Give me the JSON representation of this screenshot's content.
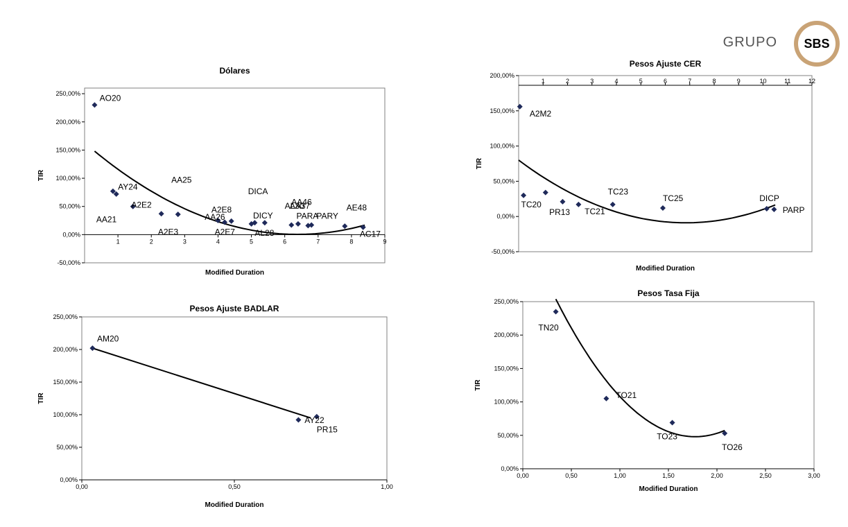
{
  "logo": {
    "word": "GRUPO",
    "badge": "SBS",
    "accent": "#c9a376"
  },
  "colors": {
    "point": "#1f2a5a",
    "trend": "#000000",
    "axis": "#808080"
  },
  "chart_data": [
    {
      "id": "dolares",
      "type": "scatter",
      "title": "Dólares",
      "xlabel": "Modified Duration",
      "ylabel": "TIR",
      "xlim": [
        0,
        9
      ],
      "ylim": [
        -0.5,
        2.6
      ],
      "xticks": [
        1,
        2,
        3,
        4,
        5,
        6,
        7,
        8,
        9
      ],
      "xtick_labels": [
        "1",
        "2",
        "3",
        "4",
        "5",
        "6",
        "7",
        "8",
        "9"
      ],
      "yticks": [
        -0.5,
        0,
        0.5,
        1.0,
        1.5,
        2.0,
        2.5
      ],
      "ytick_labels": [
        "-50,00%",
        "0,00%",
        "50,00%",
        "100,00%",
        "150,00%",
        "200,00%",
        "250,00%"
      ],
      "x_axis_at_zero": true,
      "points": [
        {
          "x": 0.3,
          "y": 2.3
        },
        {
          "x": 0.85,
          "y": 0.77
        },
        {
          "x": 0.95,
          "y": 0.72
        },
        {
          "x": 1.45,
          "y": 0.5
        },
        {
          "x": 2.3,
          "y": 0.37
        },
        {
          "x": 2.8,
          "y": 0.36
        },
        {
          "x": 4.0,
          "y": 0.25
        },
        {
          "x": 4.2,
          "y": 0.22
        },
        {
          "x": 4.4,
          "y": 0.24
        },
        {
          "x": 5.0,
          "y": 0.19
        },
        {
          "x": 5.1,
          "y": 0.21
        },
        {
          "x": 5.4,
          "y": 0.21
        },
        {
          "x": 6.2,
          "y": 0.17
        },
        {
          "x": 6.4,
          "y": 0.19
        },
        {
          "x": 6.7,
          "y": 0.16
        },
        {
          "x": 6.8,
          "y": 0.17
        },
        {
          "x": 7.8,
          "y": 0.15
        },
        {
          "x": 8.35,
          "y": 0.13
        }
      ],
      "labels": [
        {
          "text": "AO20",
          "x": 0.45,
          "y": 2.37
        },
        {
          "text": "AY24",
          "x": 1.0,
          "y": 0.8
        },
        {
          "text": "AA25",
          "x": 2.6,
          "y": 0.92
        },
        {
          "text": "A2E2",
          "x": 1.4,
          "y": 0.48
        },
        {
          "text": "AA21",
          "x": 0.35,
          "y": 0.22
        },
        {
          "text": "A2E3",
          "x": 2.2,
          "y": 0.0
        },
        {
          "text": "A2E8",
          "x": 3.8,
          "y": 0.39
        },
        {
          "text": "AA26",
          "x": 3.6,
          "y": 0.26
        },
        {
          "text": "A2E7",
          "x": 3.9,
          "y": 0.0
        },
        {
          "text": "DICA",
          "x": 4.9,
          "y": 0.72
        },
        {
          "text": "DICY",
          "x": 5.05,
          "y": 0.29
        },
        {
          "text": "AL28",
          "x": 5.1,
          "y": -0.02
        },
        {
          "text": "AA46",
          "x": 6.2,
          "y": 0.53
        },
        {
          "text": "AL30",
          "x": 6.0,
          "y": 0.46
        },
        {
          "text": "AA37",
          "x": 6.15,
          "y": 0.46
        },
        {
          "text": "PARA",
          "x": 6.35,
          "y": 0.28
        },
        {
          "text": "PARY",
          "x": 6.95,
          "y": 0.28
        },
        {
          "text": "AE48",
          "x": 7.85,
          "y": 0.43
        },
        {
          "text": "AC17",
          "x": 8.25,
          "y": -0.04
        }
      ],
      "trendline": {
        "kind": "quadratic",
        "coef": [
          0.04,
          -0.51,
          1.63
        ],
        "x_range": [
          0.3,
          8.4
        ]
      }
    },
    {
      "id": "badlar",
      "type": "scatter",
      "title": "Pesos Ajuste BADLAR",
      "xlabel": "Modified Duration",
      "ylabel": "TIR",
      "xlim": [
        0,
        1
      ],
      "ylim": [
        0,
        2.5
      ],
      "xticks": [
        0,
        0.5,
        1.0
      ],
      "xtick_labels": [
        "0,00",
        "0,50",
        "1,00"
      ],
      "yticks": [
        0,
        0.5,
        1.0,
        1.5,
        2.0,
        2.5
      ],
      "ytick_labels": [
        "0,00%",
        "50,00%",
        "100,00%",
        "150,00%",
        "200,00%",
        "250,00%"
      ],
      "points": [
        {
          "x": 0.035,
          "y": 2.02
        },
        {
          "x": 0.71,
          "y": 0.92
        },
        {
          "x": 0.77,
          "y": 0.97
        }
      ],
      "labels": [
        {
          "text": "AM20",
          "x": 0.05,
          "y": 2.12
        },
        {
          "text": "AY22",
          "x": 0.73,
          "y": 0.87
        },
        {
          "text": "PR15",
          "x": 0.77,
          "y": 0.73
        }
      ],
      "trendline": {
        "kind": "linear",
        "points": [
          [
            0.035,
            2.02
          ],
          [
            0.75,
            0.95
          ]
        ]
      }
    },
    {
      "id": "cer",
      "type": "scatter",
      "title": "Pesos Ajuste CER",
      "xlabel": "Modified Duration",
      "ylabel": "TIR",
      "xlim": [
        0,
        12
      ],
      "ylim": [
        -0.5,
        2.0
      ],
      "xticks": [
        1,
        2,
        3,
        4,
        5,
        6,
        7,
        8,
        9,
        10,
        11,
        12
      ],
      "xtick_labels": [
        "1",
        "2",
        "3",
        "4",
        "5",
        "6",
        "7",
        "8",
        "9",
        "10",
        "11",
        "12"
      ],
      "yticks": [
        -0.5,
        0,
        0.5,
        1.0,
        1.5,
        2.0
      ],
      "ytick_labels": [
        "-50,00%",
        "0,00%",
        "50,00%",
        "100,00%",
        "150,00%",
        "200,00%"
      ],
      "x_axis_top": true,
      "points": [
        {
          "x": 0.05,
          "y": 1.56
        },
        {
          "x": 0.2,
          "y": 0.3
        },
        {
          "x": 1.1,
          "y": 0.34
        },
        {
          "x": 1.8,
          "y": 0.21
        },
        {
          "x": 2.45,
          "y": 0.17
        },
        {
          "x": 3.85,
          "y": 0.17
        },
        {
          "x": 5.9,
          "y": 0.12
        },
        {
          "x": 10.15,
          "y": 0.11
        },
        {
          "x": 10.45,
          "y": 0.1
        }
      ],
      "labels": [
        {
          "text": "A2M2",
          "x": 0.45,
          "y": 1.42
        },
        {
          "text": "TC20",
          "x": 0.1,
          "y": 0.13
        },
        {
          "text": "PR13",
          "x": 1.25,
          "y": 0.02
        },
        {
          "text": "TC21",
          "x": 2.7,
          "y": 0.03
        },
        {
          "text": "TC23",
          "x": 3.65,
          "y": 0.31
        },
        {
          "text": "TC25",
          "x": 5.9,
          "y": 0.22
        },
        {
          "text": "DICP",
          "x": 9.85,
          "y": 0.22
        },
        {
          "text": "PARP",
          "x": 10.8,
          "y": 0.05
        }
      ],
      "trendline": {
        "kind": "quadratic",
        "coef": [
          0.019,
          -0.26,
          0.8
        ],
        "x_range": [
          0,
          10.5
        ]
      }
    },
    {
      "id": "tasafija",
      "type": "scatter",
      "title": "Pesos Tasa Fija",
      "xlabel": "Modified Duration",
      "ylabel": "TIR",
      "xlim": [
        0,
        3
      ],
      "ylim": [
        0,
        2.5
      ],
      "xticks": [
        0,
        0.5,
        1.0,
        1.5,
        2.0,
        2.5,
        3.0
      ],
      "xtick_labels": [
        "0,00",
        "0,50",
        "1,00",
        "1,50",
        "2,00",
        "2,50",
        "3,00"
      ],
      "yticks": [
        0,
        0.5,
        1.0,
        1.5,
        2.0,
        2.5
      ],
      "ytick_labels": [
        "0,00%",
        "50,00%",
        "100,00%",
        "150,00%",
        "200,00%",
        "250,00%"
      ],
      "points": [
        {
          "x": 0.34,
          "y": 2.35
        },
        {
          "x": 0.86,
          "y": 1.05
        },
        {
          "x": 1.54,
          "y": 0.69
        },
        {
          "x": 2.08,
          "y": 0.53
        }
      ],
      "labels": [
        {
          "text": "TN20",
          "x": 0.16,
          "y": 2.07
        },
        {
          "text": "TO21",
          "x": 0.96,
          "y": 1.06
        },
        {
          "text": "TO23",
          "x": 1.38,
          "y": 0.44
        },
        {
          "text": "TO26",
          "x": 2.05,
          "y": 0.28
        }
      ],
      "trendline": {
        "kind": "quadratic",
        "coef": [
          1.0,
          -3.55,
          3.63
        ],
        "x_range": [
          0.34,
          2.08
        ]
      }
    }
  ]
}
